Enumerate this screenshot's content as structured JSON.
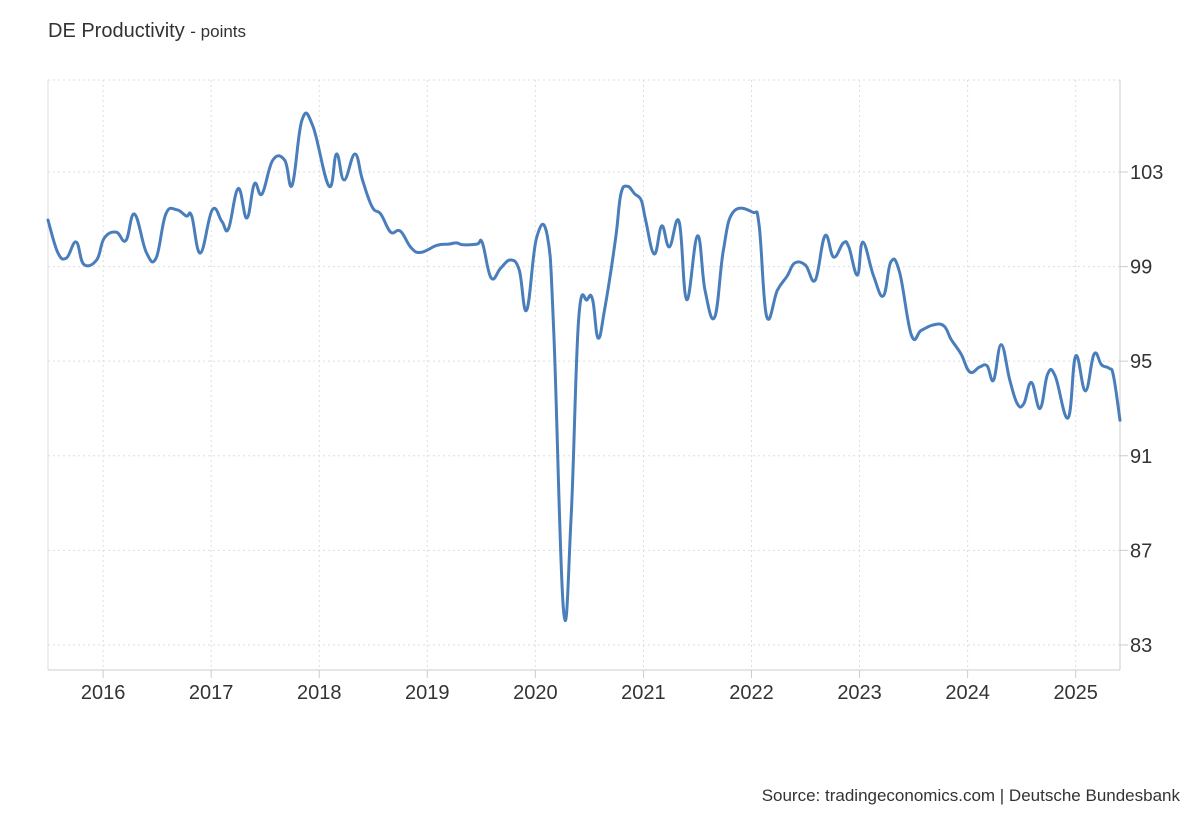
{
  "chart_data": {
    "type": "line",
    "title": "DE Productivity",
    "unit_label": "- points",
    "xlabel": "",
    "ylabel": "",
    "x_ticks": [
      "2016",
      "2017",
      "2018",
      "2019",
      "2020",
      "2021",
      "2022",
      "2023",
      "2024",
      "2025"
    ],
    "y_ticks": [
      "83",
      "87",
      "91",
      "95",
      "99",
      "103"
    ],
    "xlim": [
      2015.49,
      2025.41
    ],
    "ylim": [
      81.94,
      106.89
    ],
    "grid": true,
    "line_color": "#4a7ebb",
    "series": [
      {
        "name": "DE Productivity",
        "points": [
          [
            2015.49,
            100.97
          ],
          [
            2015.58,
            99.6
          ],
          [
            2015.66,
            99.36
          ],
          [
            2015.75,
            100.04
          ],
          [
            2015.82,
            99.1
          ],
          [
            2015.94,
            99.28
          ],
          [
            2016.01,
            100.2
          ],
          [
            2016.12,
            100.46
          ],
          [
            2016.21,
            100.1
          ],
          [
            2016.29,
            101.22
          ],
          [
            2016.4,
            99.6
          ],
          [
            2016.49,
            99.36
          ],
          [
            2016.58,
            101.22
          ],
          [
            2016.68,
            101.4
          ],
          [
            2016.77,
            101.14
          ],
          [
            2016.82,
            101.14
          ],
          [
            2016.9,
            99.57
          ],
          [
            2017.01,
            101.4
          ],
          [
            2017.1,
            100.9
          ],
          [
            2017.16,
            100.6
          ],
          [
            2017.25,
            102.3
          ],
          [
            2017.33,
            101.05
          ],
          [
            2017.4,
            102.5
          ],
          [
            2017.47,
            102.07
          ],
          [
            2017.57,
            103.5
          ],
          [
            2017.68,
            103.5
          ],
          [
            2017.75,
            102.45
          ],
          [
            2017.84,
            105.2
          ],
          [
            2017.94,
            104.95
          ],
          [
            2018.09,
            102.4
          ],
          [
            2018.16,
            103.76
          ],
          [
            2018.23,
            102.66
          ],
          [
            2018.33,
            103.76
          ],
          [
            2018.4,
            102.66
          ],
          [
            2018.49,
            101.52
          ],
          [
            2018.57,
            101.22
          ],
          [
            2018.66,
            100.46
          ],
          [
            2018.75,
            100.5
          ],
          [
            2018.85,
            99.8
          ],
          [
            2018.94,
            99.6
          ],
          [
            2019.09,
            99.9
          ],
          [
            2019.2,
            99.95
          ],
          [
            2019.27,
            100.0
          ],
          [
            2019.33,
            99.92
          ],
          [
            2019.46,
            99.95
          ],
          [
            2019.51,
            100.0
          ],
          [
            2019.59,
            98.52
          ],
          [
            2019.68,
            98.94
          ],
          [
            2019.77,
            99.28
          ],
          [
            2019.85,
            98.86
          ],
          [
            2019.92,
            97.16
          ],
          [
            2020.01,
            100.2
          ],
          [
            2020.11,
            100.3
          ],
          [
            2020.17,
            96.3
          ],
          [
            2020.26,
            84.48
          ],
          [
            2020.33,
            88.3
          ],
          [
            2020.4,
            96.74
          ],
          [
            2020.48,
            97.6
          ],
          [
            2020.53,
            97.6
          ],
          [
            2020.58,
            95.98
          ],
          [
            2020.64,
            97.16
          ],
          [
            2020.74,
            100.1
          ],
          [
            2020.79,
            102.03
          ],
          [
            2020.85,
            102.4
          ],
          [
            2020.92,
            102.07
          ],
          [
            2020.98,
            101.8
          ],
          [
            2021.02,
            100.97
          ],
          [
            2021.1,
            99.53
          ],
          [
            2021.17,
            100.72
          ],
          [
            2021.24,
            99.83
          ],
          [
            2021.33,
            100.9
          ],
          [
            2021.4,
            97.6
          ],
          [
            2021.5,
            100.3
          ],
          [
            2021.57,
            98.0
          ],
          [
            2021.66,
            96.87
          ],
          [
            2021.74,
            99.7
          ],
          [
            2021.83,
            101.3
          ],
          [
            2022.01,
            101.3
          ],
          [
            2022.07,
            100.75
          ],
          [
            2022.14,
            96.9
          ],
          [
            2022.24,
            98.0
          ],
          [
            2022.33,
            98.6
          ],
          [
            2022.4,
            99.15
          ],
          [
            2022.5,
            99.06
          ],
          [
            2022.59,
            98.43
          ],
          [
            2022.68,
            100.3
          ],
          [
            2022.76,
            99.4
          ],
          [
            2022.85,
            100.0
          ],
          [
            2022.9,
            99.83
          ],
          [
            2022.98,
            98.64
          ],
          [
            2023.03,
            100.04
          ],
          [
            2023.13,
            98.6
          ],
          [
            2023.22,
            97.76
          ],
          [
            2023.29,
            99.2
          ],
          [
            2023.37,
            98.77
          ],
          [
            2023.48,
            96.1
          ],
          [
            2023.57,
            96.3
          ],
          [
            2023.68,
            96.53
          ],
          [
            2023.78,
            96.49
          ],
          [
            2023.85,
            95.9
          ],
          [
            2023.94,
            95.3
          ],
          [
            2024.02,
            94.54
          ],
          [
            2024.11,
            94.75
          ],
          [
            2024.18,
            94.8
          ],
          [
            2024.24,
            94.2
          ],
          [
            2024.31,
            95.7
          ],
          [
            2024.39,
            94.2
          ],
          [
            2024.46,
            93.2
          ],
          [
            2024.52,
            93.2
          ],
          [
            2024.59,
            94.1
          ],
          [
            2024.67,
            93.0
          ],
          [
            2024.74,
            94.45
          ],
          [
            2024.81,
            94.37
          ],
          [
            2024.93,
            92.6
          ],
          [
            2025.0,
            95.22
          ],
          [
            2025.09,
            93.74
          ],
          [
            2025.17,
            95.3
          ],
          [
            2025.24,
            94.84
          ],
          [
            2025.31,
            94.7
          ],
          [
            2025.35,
            94.37
          ],
          [
            2025.41,
            92.5
          ]
        ]
      }
    ],
    "source": "Source: tradingeconomics.com | Deutsche Bundesbank"
  }
}
